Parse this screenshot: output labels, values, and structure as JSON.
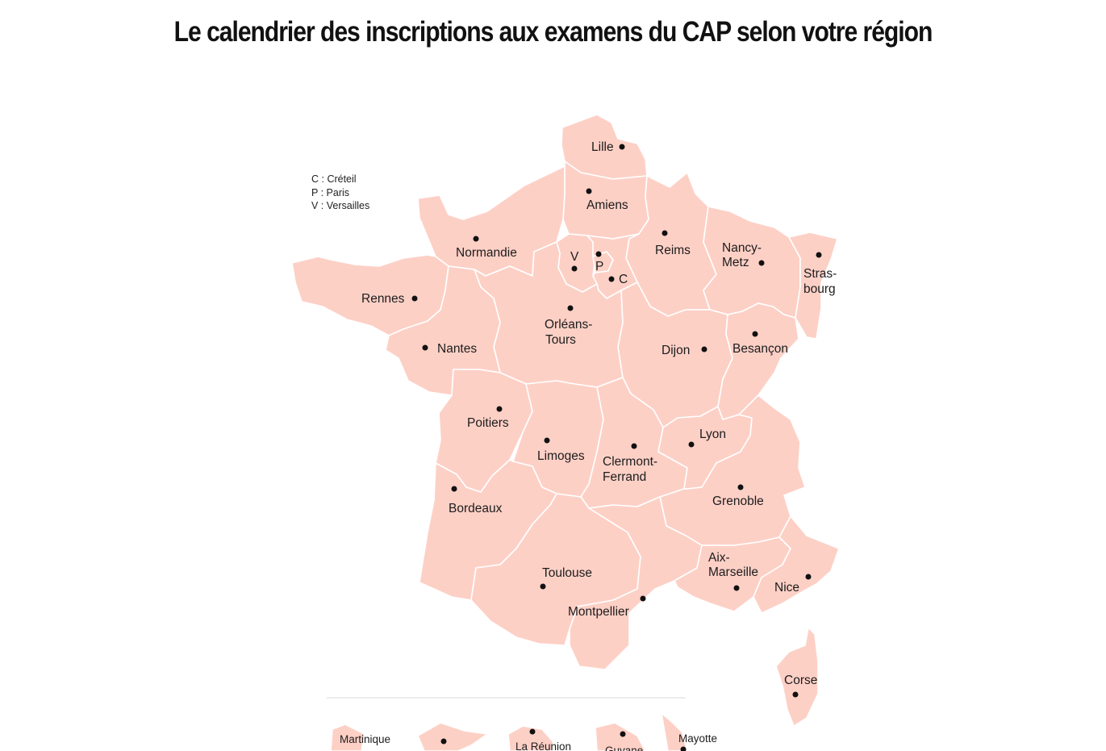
{
  "title": "Le calendrier des inscriptions aux examens du CAP selon votre région",
  "legend": {
    "items": [
      "C : Créteil",
      "P : Paris",
      "V : Versailles"
    ]
  },
  "colors": {
    "region_fill": "#fdd0c6",
    "border": "#ffffff",
    "dot": "#111111"
  },
  "regions": {
    "lille": "Lille",
    "amiens": "Amiens",
    "normandie": "Normandie",
    "reims": "Reims",
    "nancy_1": "Nancy-",
    "nancy_2": "Metz",
    "strasbourg_1": "Stras-",
    "strasbourg_2": "bourg",
    "versailles": "V",
    "paris": "P",
    "creteil": "C",
    "rennes": "Rennes",
    "orleans_1": "Orléans-",
    "orleans_2": "Tours",
    "nantes": "Nantes",
    "dijon": "Dijon",
    "besancon": "Besançon",
    "poitiers": "Poitiers",
    "limoges": "Limoges",
    "clermont_1": "Clermont-",
    "clermont_2": "Ferrand",
    "lyon": "Lyon",
    "grenoble": "Grenoble",
    "bordeaux": "Bordeaux",
    "toulouse": "Toulouse",
    "montpellier": "Montpellier",
    "aix_1": "Aix-",
    "aix_2": "Marseille",
    "nice": "Nice",
    "corse": "Corse"
  },
  "overseas": {
    "martinique": "Martinique",
    "reunion": "La Réunion",
    "guyane": "Guyane",
    "mayotte": "Mayotte"
  }
}
